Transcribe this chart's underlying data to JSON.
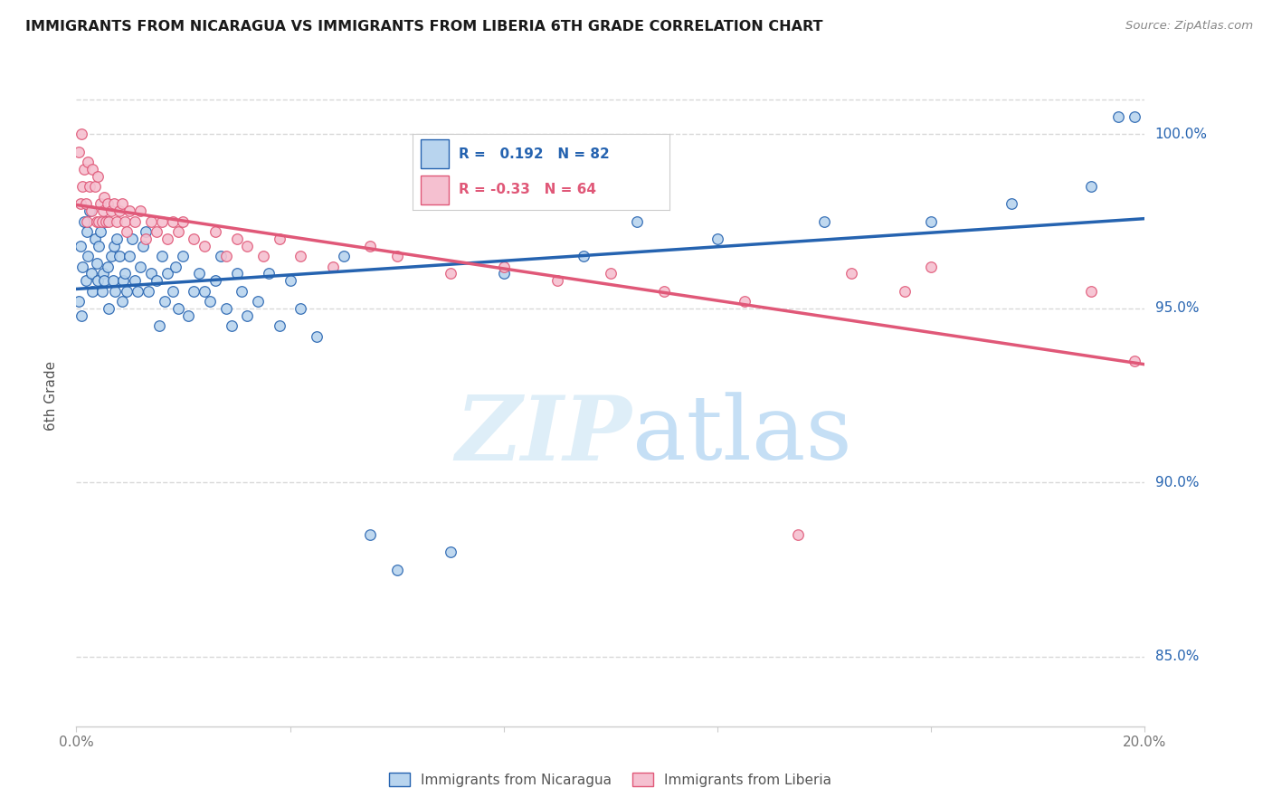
{
  "title": "IMMIGRANTS FROM NICARAGUA VS IMMIGRANTS FROM LIBERIA 6TH GRADE CORRELATION CHART",
  "source": "Source: ZipAtlas.com",
  "ylabel": "6th Grade",
  "xlim": [
    0.0,
    20.0
  ],
  "ylim": [
    83.0,
    102.0
  ],
  "R_nicaragua": 0.192,
  "N_nicaragua": 82,
  "R_liberia": -0.33,
  "N_liberia": 64,
  "color_nicaragua": "#b8d4ee",
  "color_liberia": "#f5c0d0",
  "line_color_nicaragua": "#2563b0",
  "line_color_liberia": "#e05878",
  "marker_size": 70,
  "nicaragua_x": [
    0.05,
    0.08,
    0.1,
    0.12,
    0.15,
    0.18,
    0.2,
    0.22,
    0.25,
    0.28,
    0.3,
    0.35,
    0.38,
    0.4,
    0.42,
    0.45,
    0.48,
    0.5,
    0.52,
    0.55,
    0.58,
    0.6,
    0.65,
    0.68,
    0.7,
    0.72,
    0.75,
    0.8,
    0.85,
    0.88,
    0.9,
    0.95,
    1.0,
    1.05,
    1.1,
    1.15,
    1.2,
    1.25,
    1.3,
    1.35,
    1.4,
    1.5,
    1.55,
    1.6,
    1.65,
    1.7,
    1.8,
    1.85,
    1.9,
    2.0,
    2.1,
    2.2,
    2.3,
    2.4,
    2.5,
    2.6,
    2.7,
    2.8,
    2.9,
    3.0,
    3.1,
    3.2,
    3.4,
    3.6,
    3.8,
    4.0,
    4.2,
    4.5,
    5.0,
    5.5,
    6.0,
    7.0,
    8.0,
    9.5,
    10.5,
    12.0,
    14.0,
    16.0,
    17.5,
    19.0,
    19.5,
    19.8
  ],
  "nicaragua_y": [
    95.2,
    96.8,
    94.8,
    96.2,
    97.5,
    95.8,
    97.2,
    96.5,
    97.8,
    96.0,
    95.5,
    97.0,
    96.3,
    95.8,
    96.8,
    97.2,
    95.5,
    96.0,
    95.8,
    97.5,
    96.2,
    95.0,
    96.5,
    95.8,
    96.8,
    95.5,
    97.0,
    96.5,
    95.2,
    95.8,
    96.0,
    95.5,
    96.5,
    97.0,
    95.8,
    95.5,
    96.2,
    96.8,
    97.2,
    95.5,
    96.0,
    95.8,
    94.5,
    96.5,
    95.2,
    96.0,
    95.5,
    96.2,
    95.0,
    96.5,
    94.8,
    95.5,
    96.0,
    95.5,
    95.2,
    95.8,
    96.5,
    95.0,
    94.5,
    96.0,
    95.5,
    94.8,
    95.2,
    96.0,
    94.5,
    95.8,
    95.0,
    94.2,
    96.5,
    88.5,
    87.5,
    88.0,
    96.0,
    96.5,
    97.5,
    97.0,
    97.5,
    97.5,
    98.0,
    98.5,
    100.5,
    100.5
  ],
  "liberia_x": [
    0.05,
    0.08,
    0.1,
    0.12,
    0.15,
    0.18,
    0.2,
    0.22,
    0.25,
    0.28,
    0.3,
    0.35,
    0.38,
    0.4,
    0.42,
    0.45,
    0.48,
    0.5,
    0.52,
    0.55,
    0.58,
    0.6,
    0.65,
    0.7,
    0.75,
    0.8,
    0.85,
    0.9,
    0.95,
    1.0,
    1.1,
    1.2,
    1.3,
    1.4,
    1.5,
    1.6,
    1.7,
    1.8,
    1.9,
    2.0,
    2.2,
    2.4,
    2.6,
    2.8,
    3.0,
    3.2,
    3.5,
    3.8,
    4.2,
    4.8,
    5.5,
    6.0,
    7.0,
    8.0,
    9.0,
    10.0,
    11.0,
    12.5,
    13.5,
    14.5,
    15.5,
    16.0,
    19.0,
    19.8
  ],
  "liberia_y": [
    99.5,
    98.0,
    100.0,
    98.5,
    99.0,
    98.0,
    97.5,
    99.2,
    98.5,
    97.8,
    99.0,
    98.5,
    97.5,
    98.8,
    97.5,
    98.0,
    97.5,
    97.8,
    98.2,
    97.5,
    98.0,
    97.5,
    97.8,
    98.0,
    97.5,
    97.8,
    98.0,
    97.5,
    97.2,
    97.8,
    97.5,
    97.8,
    97.0,
    97.5,
    97.2,
    97.5,
    97.0,
    97.5,
    97.2,
    97.5,
    97.0,
    96.8,
    97.2,
    96.5,
    97.0,
    96.8,
    96.5,
    97.0,
    96.5,
    96.2,
    96.8,
    96.5,
    96.0,
    96.2,
    95.8,
    96.0,
    95.5,
    95.2,
    88.5,
    96.0,
    95.5,
    96.2,
    95.5,
    93.5
  ],
  "background_color": "#ffffff",
  "grid_color": "#d8d8d8",
  "watermark_color": "#deeef8",
  "y_ticks": [
    85.0,
    90.0,
    95.0,
    100.0
  ],
  "y_tick_labels": [
    "85.0%",
    "90.0%",
    "95.0%",
    "100.0%"
  ]
}
